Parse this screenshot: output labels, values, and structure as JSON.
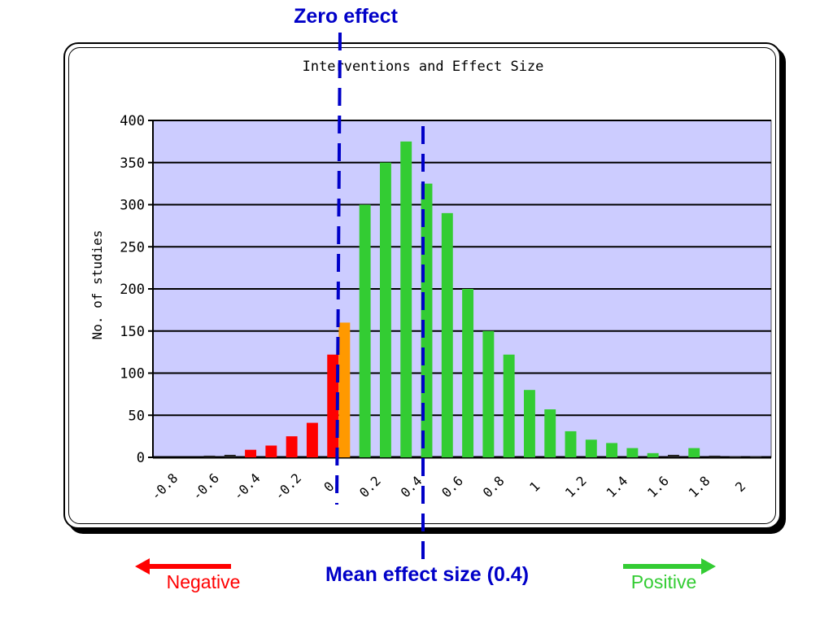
{
  "annotations": {
    "zero_effect": "Zero effect",
    "mean_effect": "Mean effect size (0.4)",
    "negative": "Negative",
    "positive": "Positive"
  },
  "colors": {
    "negative": "#ff0000",
    "neutral": "#ff9900",
    "positive": "#33cc33",
    "plot_bg": "#ccccff",
    "annotation": "#0000c8"
  },
  "chart_data": {
    "type": "bar",
    "title": "Interventions and Effect Size",
    "xlabel": "",
    "ylabel": "No. of studies",
    "ylim": [
      0,
      400
    ],
    "yticks": [
      0,
      50,
      100,
      150,
      200,
      250,
      300,
      350,
      400
    ],
    "xticks": [
      "-0.8",
      "-0.6",
      "-0.4",
      "-0.2",
      "0",
      "0.2",
      "0.4",
      "0.6",
      "0.8",
      "1",
      "1.2",
      "1.4",
      "1.6",
      "1.8",
      "2"
    ],
    "grid": true,
    "legend": "none",
    "reference_lines": [
      {
        "label": "Zero effect",
        "x": 0
      },
      {
        "label": "Mean effect size (0.4)",
        "x": 0.4
      }
    ],
    "bars": [
      {
        "x": -0.8,
        "value": 0,
        "group": "negative"
      },
      {
        "x": -0.7,
        "value": 0,
        "group": "negative"
      },
      {
        "x": -0.6,
        "value": 2,
        "group": "negative"
      },
      {
        "x": -0.5,
        "value": 3,
        "group": "negative"
      },
      {
        "x": -0.4,
        "value": 9,
        "group": "negative"
      },
      {
        "x": -0.3,
        "value": 14,
        "group": "negative"
      },
      {
        "x": -0.2,
        "value": 25,
        "group": "negative"
      },
      {
        "x": -0.1,
        "value": 41,
        "group": "negative"
      },
      {
        "x": -0.0,
        "value": 122,
        "group": "negative"
      },
      {
        "x": 0.0,
        "value": 160,
        "group": "neutral"
      },
      {
        "x": 0.1,
        "value": 300,
        "group": "positive"
      },
      {
        "x": 0.2,
        "value": 350,
        "group": "positive"
      },
      {
        "x": 0.3,
        "value": 375,
        "group": "positive"
      },
      {
        "x": 0.4,
        "value": 325,
        "group": "positive"
      },
      {
        "x": 0.5,
        "value": 290,
        "group": "positive"
      },
      {
        "x": 0.6,
        "value": 200,
        "group": "positive"
      },
      {
        "x": 0.7,
        "value": 150,
        "group": "positive"
      },
      {
        "x": 0.8,
        "value": 122,
        "group": "positive"
      },
      {
        "x": 0.9,
        "value": 80,
        "group": "positive"
      },
      {
        "x": 1.0,
        "value": 57,
        "group": "positive"
      },
      {
        "x": 1.1,
        "value": 31,
        "group": "positive"
      },
      {
        "x": 1.2,
        "value": 21,
        "group": "positive"
      },
      {
        "x": 1.3,
        "value": 17,
        "group": "positive"
      },
      {
        "x": 1.4,
        "value": 11,
        "group": "positive"
      },
      {
        "x": 1.5,
        "value": 5,
        "group": "positive"
      },
      {
        "x": 1.6,
        "value": 3,
        "group": "positive"
      },
      {
        "x": 1.7,
        "value": 11,
        "group": "positive"
      },
      {
        "x": 1.8,
        "value": 2,
        "group": "positive"
      },
      {
        "x": 1.9,
        "value": 1,
        "group": "positive"
      },
      {
        "x": 2.0,
        "value": 1,
        "group": "positive"
      }
    ]
  }
}
